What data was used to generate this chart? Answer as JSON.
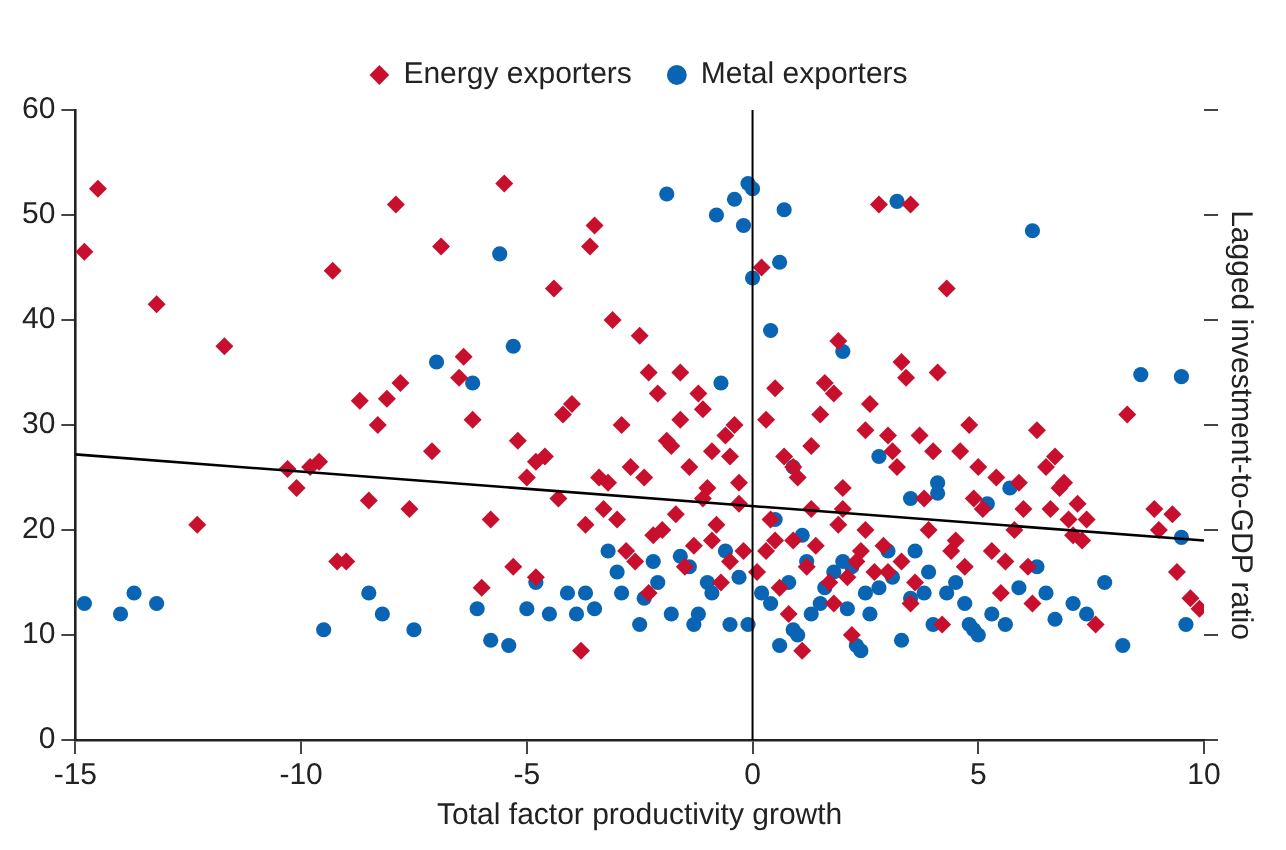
{
  "chart_data": {
    "type": "scatter",
    "xlabel": "Total factor productivity growth",
    "ylabel": "Lagged investment-to-GDP ratio",
    "xlim": [
      -15,
      10
    ],
    "xticks": [
      -15,
      -10,
      -5,
      0,
      5,
      10
    ],
    "ylim": [
      0,
      60
    ],
    "yticks": [
      0,
      10,
      20,
      30,
      40,
      50,
      60
    ],
    "grid": false,
    "legend": "top",
    "ref_lines": [
      {
        "axis": "x",
        "value": 0,
        "color": "#000000"
      }
    ],
    "series": [
      {
        "name": "Energy exporters",
        "color": "#c8102e",
        "marker": "diamond",
        "x": [
          -14.5,
          -14.8,
          -13.2,
          -12.3,
          -11.7,
          -10.3,
          -10.1,
          -9.8,
          -9.6,
          -9.3,
          -9.2,
          -9,
          -8.7,
          -8.5,
          -8.3,
          -8.1,
          -7.9,
          -7.8,
          -7.6,
          -7.1,
          -6.9,
          -6.5,
          -6.4,
          -6.2,
          -6,
          -5.5,
          -5.2,
          -5.3,
          -5,
          -4.8,
          -4.8,
          -4.4,
          -4.2,
          -4,
          -3.8,
          -3.6,
          -3.5,
          -3.4,
          -3.3,
          -3.1,
          -3,
          -2.9,
          -2.8,
          -2.5,
          -2.3,
          -2.1,
          -2,
          -1.8,
          -1.6,
          -1.4,
          -1.2,
          -1,
          -0.9,
          -0.7,
          -0.4,
          -0.3,
          -0.2,
          0.1,
          0.2,
          0.5,
          0.7,
          1,
          1.3,
          1.5,
          1.8,
          2,
          2.3,
          2.5,
          2.8,
          3,
          3.2,
          3.5,
          3.8,
          4,
          4.3,
          4.5,
          4.8,
          5,
          5.3,
          5.5,
          5.8,
          6,
          6.2,
          6.5,
          6.8,
          7,
          7.3,
          7.6,
          8.3,
          8.9,
          9,
          9.3,
          9.4,
          9.7,
          9.9,
          1.1,
          1.8,
          -1.5,
          0.8,
          2.2,
          3.5,
          4.2,
          3,
          -2.3,
          0.4,
          -0.6,
          1.6,
          2.5,
          3.7,
          6.3,
          6.9,
          7.2,
          -2.6,
          -2.2,
          -1.7,
          -1.3,
          -1.1,
          -0.8,
          -0.5,
          -0.3,
          0.3,
          0.6,
          0.9,
          1.2,
          1.4,
          1.7,
          1.9,
          2.1,
          2.4,
          2.7,
          2.9,
          3.3,
          3.6,
          3.9,
          4.4,
          4.7,
          5.1,
          5.6,
          6.1,
          6.6,
          7.1,
          -3.7,
          -4.3,
          -3.2,
          -2.7,
          -1.9,
          -1.1,
          -0.5,
          0.3,
          1.3,
          2.6,
          3.4,
          4.6,
          5.4,
          6.7,
          -5.8,
          -4.6,
          -2.4,
          -0.9,
          0.9,
          2.0,
          3.1,
          4.9,
          5.9,
          7.4,
          -1.6,
          0.5,
          1.9,
          3.3,
          4.1
        ],
        "values": [
          52.5,
          46.5,
          41.5,
          20.5,
          37.5,
          25.8,
          24,
          26,
          26.5,
          44.7,
          17,
          17,
          32.3,
          22.8,
          30,
          32.5,
          51,
          34,
          22,
          27.5,
          47,
          34.5,
          36.5,
          30.5,
          14.5,
          53,
          28.5,
          16.5,
          25,
          26.5,
          15.5,
          43,
          31,
          32,
          8.5,
          47,
          49,
          25,
          22,
          40,
          21,
          30,
          18,
          38.5,
          35,
          33,
          20,
          28,
          35,
          26,
          33,
          24,
          19,
          15,
          30,
          24.5,
          18,
          16,
          45,
          19,
          27,
          25,
          22,
          31,
          33,
          22,
          17,
          20,
          51,
          29,
          26,
          51,
          23,
          27.5,
          43,
          19,
          30,
          26,
          18,
          14,
          20,
          22,
          13,
          26,
          24,
          21,
          19,
          11,
          31,
          22,
          20,
          21.5,
          16,
          13.5,
          12.5,
          8.5,
          13,
          16.5,
          12,
          10,
          13,
          11,
          16,
          14,
          21,
          29,
          34,
          29.5,
          29,
          29.5,
          24.5,
          22.5,
          17,
          19.5,
          21.5,
          18.5,
          23,
          20.5,
          17,
          22.5,
          18,
          14.5,
          19,
          16.5,
          18.5,
          15,
          20.5,
          15.5,
          18,
          16,
          18.5,
          17,
          15,
          20,
          18,
          16.5,
          22,
          17,
          16.5,
          22,
          19.5,
          20.5,
          23,
          24.5,
          26,
          28.5,
          31.5,
          27,
          30.5,
          28,
          32,
          34.5,
          27.5,
          25,
          27,
          21,
          27,
          25,
          27.5,
          26,
          24,
          27.5,
          23,
          24.5,
          21,
          30.5,
          33.5,
          38,
          36,
          35
        ]
      },
      {
        "name": "Metal exporters",
        "color": "#0a64b4",
        "marker": "circle",
        "x": [
          -14.8,
          -14,
          -13.7,
          -13.2,
          -9.5,
          -8.5,
          -8.2,
          -7.5,
          -7,
          -6.2,
          -5.8,
          -5.6,
          -5.4,
          -5.3,
          -5,
          -4.5,
          -4.1,
          -3.9,
          -3.2,
          -2.9,
          -2.5,
          -2.1,
          -1.6,
          -1.9,
          -1.2,
          -0.8,
          -0.7,
          -0.4,
          -0.1,
          0,
          0,
          -0.2,
          0.4,
          0.6,
          0.7,
          0.9,
          1.1,
          2,
          2.5,
          2.8,
          3.2,
          3.5,
          4.1,
          4.1,
          5.7,
          6.2,
          8.6,
          9.5,
          -0.5,
          0.6,
          1.3,
          2.4,
          3.3,
          4,
          4.8,
          5.6,
          6.7,
          7.4,
          8.2,
          9.6,
          1.8,
          3,
          0.2,
          -1,
          1.5,
          2.8,
          4.5,
          5.2,
          6.5,
          7.8,
          9.5,
          -3.5,
          0.9,
          2.1,
          3.8,
          -3,
          -2.4,
          -1.8,
          -1.4,
          -0.9,
          -0.6,
          -0.3,
          0.4,
          0.8,
          1.2,
          1.6,
          2.2,
          2.6,
          3.1,
          3.5,
          3.9,
          4.3,
          4.7,
          5.3,
          5.9,
          6.3,
          7.1,
          -4.8,
          -3.7,
          -2.2,
          -0.1,
          1,
          2.3,
          3.6,
          4.9,
          -6.1,
          -1.3,
          0.5,
          2,
          5
        ],
        "values": [
          13,
          12,
          14,
          13,
          10.5,
          14,
          12,
          10.5,
          36,
          34,
          9.5,
          46.3,
          9,
          37.5,
          12.5,
          12,
          14,
          12,
          18,
          14,
          11,
          15,
          17.5,
          52,
          12,
          50,
          34,
          51.5,
          53,
          44,
          52.5,
          49,
          39,
          45.5,
          50.5,
          26,
          19.5,
          37,
          14,
          27,
          51.3,
          23,
          23.5,
          24.5,
          24,
          48.5,
          34.8,
          34.6,
          11,
          9,
          12,
          8.5,
          9.5,
          11,
          11,
          11,
          11.5,
          12,
          9,
          11,
          16,
          18,
          14,
          15,
          13,
          14.5,
          15,
          22.5,
          14,
          15,
          19.3,
          12.5,
          10.5,
          12.5,
          14,
          16,
          13.5,
          12,
          16.5,
          14,
          18,
          15.5,
          13,
          15,
          17,
          14.5,
          16.5,
          12,
          15.5,
          13.5,
          16,
          14,
          13,
          12,
          14.5,
          16.5,
          13,
          15,
          14,
          17,
          11,
          10,
          9,
          18,
          10.5,
          12.5,
          11,
          21,
          17,
          10
        ]
      },
      {
        "type": "line",
        "color": "#000000",
        "marker": "none",
        "x": [
          -15,
          10
        ],
        "values": [
          27.2,
          19
        ]
      }
    ]
  }
}
